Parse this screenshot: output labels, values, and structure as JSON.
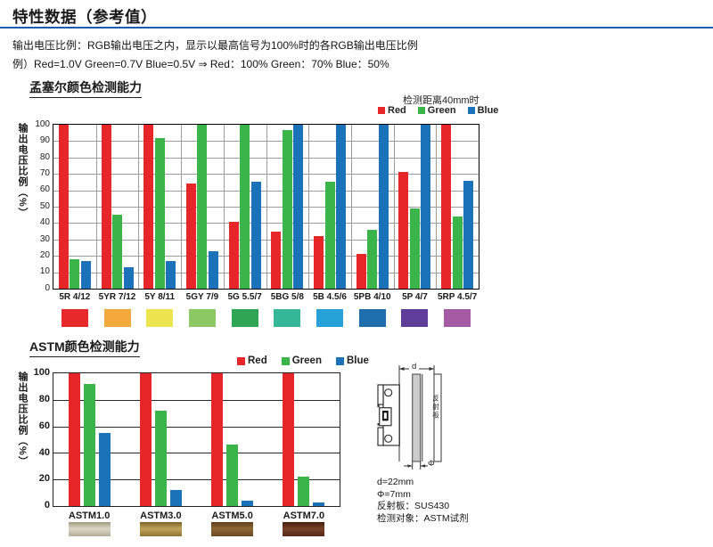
{
  "header": {
    "title": "特性数据（参考值）"
  },
  "intro": {
    "line1": "输出电压比例：RGB输出电压之内，显示以最高信号为100%时的各RGB输出电压比例",
    "line2": "例）Red=1.0V Green=0.7V Blue=0.5V ⇒ Red：100% Green：70% Blue：50%"
  },
  "colors": {
    "header_rule": "#1a5dad",
    "red": "#e62629",
    "green": "#3bb44a",
    "blue": "#1b72b8"
  },
  "chart_data": [
    {
      "type": "bar",
      "title": "孟塞尔颜色检测能力",
      "note": "检测距离40mm时",
      "ylabel": "输出电压比例（%）",
      "ylim": [
        0,
        100
      ],
      "yticks": [
        0,
        10,
        20,
        30,
        40,
        50,
        60,
        70,
        80,
        90,
        100
      ],
      "grid": true,
      "legend_position": "top-right",
      "categories": [
        "5R 4/12",
        "5YR 7/12",
        "5Y 8/11",
        "5GY 7/9",
        "5G 5.5/7",
        "5BG 5/8",
        "5B 4.5/6",
        "5PB 4/10",
        "5P 4/7",
        "5RP 4.5/7"
      ],
      "series": [
        {
          "name": "Red",
          "color": "#e62629",
          "values": [
            100,
            100,
            100,
            64,
            41,
            35,
            32,
            21,
            71,
            100
          ]
        },
        {
          "name": "Green",
          "color": "#3bb44a",
          "values": [
            18,
            45,
            92,
            100,
            100,
            97,
            65,
            36,
            49,
            44
          ]
        },
        {
          "name": "Blue",
          "color": "#1b72b8",
          "values": [
            17,
            13,
            17,
            23,
            65,
            100,
            100,
            100,
            100,
            66
          ]
        }
      ],
      "category_swatches": [
        "#e8292c",
        "#f3a93b",
        "#ece54e",
        "#8cc863",
        "#2ea654",
        "#34b897",
        "#27a2d8",
        "#1f6fae",
        "#5f3e99",
        "#a75aa4"
      ]
    },
    {
      "type": "bar",
      "title": "ASTM颜色检测能力",
      "ylabel": "输出电压比例（%）",
      "ylim": [
        0,
        100
      ],
      "yticks": [
        0,
        20,
        40,
        60,
        80,
        100
      ],
      "grid": true,
      "legend_position": "top-right",
      "categories": [
        "ASTM1.0",
        "ASTM3.0",
        "ASTM5.0",
        "ASTM7.0"
      ],
      "series": [
        {
          "name": "Red",
          "color": "#e62629",
          "values": [
            100,
            100,
            100,
            100
          ]
        },
        {
          "name": "Green",
          "color": "#3bb44a",
          "values": [
            92,
            72,
            46,
            22
          ]
        },
        {
          "name": "Blue",
          "color": "#1b72b8",
          "values": [
            55,
            12,
            4,
            3
          ]
        }
      ],
      "category_swatches": [
        {
          "gradient": [
            "#a39a7e",
            "#dcd8c8",
            "#b2ab93"
          ]
        },
        {
          "gradient": [
            "#7c6527",
            "#c2a35b",
            "#8d7533"
          ]
        },
        {
          "gradient": [
            "#5e401b",
            "#8f6737",
            "#684722"
          ]
        },
        {
          "gradient": [
            "#471f12",
            "#7a4226",
            "#52271a"
          ]
        }
      ]
    }
  ],
  "diagram": {
    "d_label": "d",
    "phi_label": "Φ",
    "reflector_label": "反射板",
    "notes": [
      "d=22mm",
      "Φ=7mm",
      "反射板：SUS430",
      "检测对象：ASTM试剂"
    ]
  }
}
